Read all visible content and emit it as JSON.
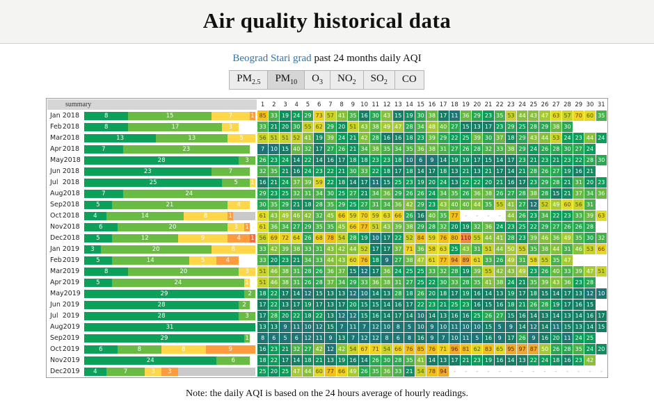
{
  "header": {
    "title": "Air quality historical data"
  },
  "subtitle": {
    "station_link": "Beograd Stari grad",
    "text": " past 24 months daily AQI"
  },
  "tabs": [
    {
      "id": "pm25",
      "base": "PM",
      "sub": "2.5",
      "active": false
    },
    {
      "id": "pm10",
      "base": "PM",
      "sub": "10",
      "active": true
    },
    {
      "id": "o3",
      "base": "O",
      "sub": "3",
      "active": false
    },
    {
      "id": "no2",
      "base": "NO",
      "sub": "2",
      "active": false
    },
    {
      "id": "so2",
      "base": "SO",
      "sub": "2",
      "active": false
    },
    {
      "id": "co",
      "base": "CO",
      "sub": "",
      "active": false
    }
  ],
  "note": "Note: the daily AQI is based on the 24 hours average of hourly readings.",
  "chart_data": {
    "type": "heatmap",
    "title": "Beograd Stari grad past 24 months daily AQI",
    "pollutant": "PM10",
    "summary_header": "summary",
    "day_headers": [
      1,
      2,
      3,
      4,
      5,
      6,
      7,
      8,
      9,
      10,
      11,
      12,
      13,
      14,
      15,
      16,
      17,
      18,
      19,
      20,
      21,
      22,
      23,
      24,
      25,
      26,
      27,
      28,
      29,
      30,
      31
    ],
    "legend": {
      "bands": [
        {
          "range": "0-25",
          "max": 25,
          "color": "#0ea05a"
        },
        {
          "range": "26-50",
          "max": 50,
          "color": "#69bb44"
        },
        {
          "range": "51-75",
          "max": 75,
          "color": "#fdd64b"
        },
        {
          "range": "76-100",
          "max": 100,
          "color": "#fc9c3e"
        },
        {
          "range": "101+",
          "max": 99999,
          "color": "#fa6a41"
        }
      ],
      "missing_color": "#c9c9c9"
    },
    "color_scale": [
      {
        "max": 12,
        "bg": "#1e7576",
        "fg": "#ffffff"
      },
      {
        "max": 17,
        "bg": "#147d64",
        "fg": "#ffffff"
      },
      {
        "max": 21,
        "bg": "#0f8e5e",
        "fg": "#ffffff"
      },
      {
        "max": 25,
        "bg": "#0c9d58",
        "fg": "#ffffff"
      },
      {
        "max": 30,
        "bg": "#28a850",
        "fg": "#ffffff"
      },
      {
        "max": 35,
        "bg": "#49b149",
        "fg": "#ffffff"
      },
      {
        "max": 40,
        "bg": "#68b942",
        "fg": "#ffffff"
      },
      {
        "max": 46,
        "bg": "#87c13b",
        "fg": "#ffffff"
      },
      {
        "max": 50,
        "bg": "#a5ca34",
        "fg": "#ffffff"
      },
      {
        "max": 57,
        "bg": "#c8d42b",
        "fg": "#595400"
      },
      {
        "max": 65,
        "bg": "#e1da26",
        "fg": "#594e00"
      },
      {
        "max": 75,
        "bg": "#eed321",
        "fg": "#594500"
      },
      {
        "max": 85,
        "bg": "#f1c01b",
        "fg": "#593800"
      },
      {
        "max": 100,
        "bg": "#efa82c",
        "fg": "#592800"
      },
      {
        "max": 9999,
        "bg": "#ee8a48",
        "fg": "#7c1100"
      }
    ],
    "rows": [
      {
        "month": "Jan",
        "year": "2018",
        "values": [
          85,
          33,
          19,
          24,
          29,
          73,
          57,
          41,
          35,
          16,
          30,
          43,
          15,
          19,
          30,
          38,
          17,
          11,
          36,
          29,
          23,
          35,
          53,
          44,
          43,
          47,
          63,
          57,
          70,
          60,
          35
        ]
      },
      {
        "month": "Feb",
        "year": "2018",
        "values": [
          33,
          21,
          20,
          30,
          55,
          62,
          29,
          20,
          51,
          43,
          38,
          49,
          47,
          28,
          34,
          48,
          40,
          27,
          15,
          13,
          17,
          23,
          29,
          25,
          28,
          29,
          38,
          30
        ]
      },
      {
        "month": "Mar",
        "year": "2018",
        "values": [
          56,
          51,
          51,
          52,
          41,
          19,
          39,
          24,
          21,
          42,
          28,
          16,
          16,
          18,
          23,
          39,
          29,
          22,
          25,
          39,
          30,
          37,
          18,
          29,
          43,
          44,
          53,
          24,
          23,
          44,
          24
        ]
      },
      {
        "month": "Apr",
        "year": "2018",
        "values": [
          7,
          10,
          15,
          40,
          32,
          17,
          27,
          26,
          21,
          34,
          38,
          35,
          34,
          35,
          36,
          38,
          31,
          27,
          26,
          28,
          32,
          33,
          38,
          29,
          24,
          26,
          28,
          30,
          27,
          24
        ]
      },
      {
        "month": "May",
        "year": "2018",
        "values": [
          26,
          23,
          24,
          14,
          22,
          14,
          16,
          17,
          18,
          18,
          23,
          23,
          18,
          10,
          6,
          9,
          14,
          19,
          19,
          17,
          15,
          14,
          17,
          23,
          21,
          23,
          21,
          23,
          22,
          28,
          30
        ]
      },
      {
        "month": "Jun",
        "year": "2018",
        "values": [
          32,
          35,
          21,
          16,
          24,
          23,
          22,
          21,
          30,
          33,
          22,
          18,
          17,
          18,
          14,
          17,
          18,
          13,
          21,
          13,
          21,
          17,
          14,
          21,
          28,
          26,
          27,
          19,
          16,
          21
        ]
      },
      {
        "month": "Jul",
        "year": "2018",
        "values": [
          16,
          21,
          24,
          37,
          39,
          59,
          22,
          18,
          14,
          17,
          11,
          15,
          25,
          23,
          19,
          20,
          24,
          13,
          22,
          22,
          20,
          21,
          16,
          17,
          23,
          29,
          28,
          21,
          31,
          20,
          23
        ]
      },
      {
        "month": "Aug",
        "year": "2018",
        "values": [
          29,
          23,
          25,
          32,
          31,
          34,
          30,
          25,
          27,
          21,
          34,
          36,
          29,
          26,
          26,
          24,
          34,
          35,
          26,
          36,
          38,
          26,
          27,
          28,
          38,
          28,
          15,
          21,
          37,
          34,
          36
        ]
      },
      {
        "month": "Sep",
        "year": "2018",
        "values": [
          30,
          35,
          29,
          21,
          18,
          28,
          35,
          29,
          25,
          27,
          31,
          34,
          36,
          42,
          29,
          23,
          43,
          40,
          40,
          44,
          35,
          55,
          41,
          27,
          12,
          52,
          49,
          60,
          56,
          31
        ]
      },
      {
        "month": "Oct",
        "year": "2018",
        "values": [
          61,
          43,
          49,
          46,
          42,
          32,
          45,
          66,
          59,
          70,
          59,
          63,
          66,
          26,
          16,
          40,
          35,
          77,
          null,
          null,
          null,
          null,
          44,
          26,
          23,
          34,
          22,
          23,
          33,
          39,
          63
        ]
      },
      {
        "month": "Nov",
        "year": "2018",
        "values": [
          61,
          36,
          34,
          27,
          29,
          35,
          35,
          45,
          66,
          77,
          51,
          43,
          39,
          38,
          29,
          28,
          32,
          20,
          19,
          32,
          36,
          24,
          23,
          25,
          22,
          29,
          27,
          26,
          26,
          28
        ]
      },
      {
        "month": "Dec",
        "year": "2018",
        "values": [
          56,
          69,
          72,
          64,
          26,
          68,
          78,
          54,
          28,
          19,
          10,
          17,
          22,
          52,
          84,
          59,
          76,
          80,
          110,
          55,
          44,
          41,
          28,
          23,
          39,
          46,
          36,
          49,
          35,
          30,
          32
        ]
      },
      {
        "month": "Jan",
        "year": "2019",
        "values": [
          33,
          42,
          39,
          38,
          33,
          31,
          43,
          42,
          44,
          52,
          17,
          17,
          37,
          71,
          36,
          58,
          63,
          25,
          43,
          31,
          51,
          44,
          50,
          55,
          35,
          38,
          44,
          31,
          46,
          53,
          66
        ]
      },
      {
        "month": "Feb",
        "year": "2019",
        "values": [
          33,
          20,
          23,
          21,
          34,
          33,
          44,
          43,
          60,
          76,
          18,
          9,
          27,
          38,
          47,
          61,
          77,
          94,
          89,
          61,
          33,
          26,
          49,
          31,
          58,
          55,
          35,
          47
        ]
      },
      {
        "month": "Mar",
        "year": "2019",
        "values": [
          51,
          46,
          38,
          31,
          28,
          26,
          36,
          37,
          15,
          12,
          17,
          36,
          24,
          25,
          25,
          33,
          32,
          28,
          19,
          39,
          55,
          42,
          43,
          49,
          23,
          26,
          40,
          33,
          39,
          47,
          51
        ]
      },
      {
        "month": "Apr",
        "year": "2019",
        "values": [
          51,
          46,
          38,
          31,
          26,
          28,
          37,
          34,
          29,
          33,
          36,
          38,
          31,
          27,
          25,
          22,
          30,
          33,
          28,
          35,
          41,
          38,
          24,
          21,
          35,
          39,
          43,
          36,
          23,
          28
        ]
      },
      {
        "month": "May",
        "year": "2019",
        "values": [
          18,
          22,
          17,
          14,
          12,
          15,
          13,
          13,
          12,
          10,
          14,
          13,
          28,
          18,
          26,
          20,
          18,
          17,
          19,
          16,
          14,
          13,
          19,
          17,
          18,
          15,
          14,
          17,
          13,
          12,
          10
        ]
      },
      {
        "month": "Jun",
        "year": "2019",
        "values": [
          17,
          22,
          13,
          17,
          19,
          17,
          13,
          17,
          20,
          15,
          15,
          14,
          16,
          17,
          22,
          23,
          21,
          25,
          23,
          16,
          15,
          16,
          18,
          21,
          26,
          28,
          19,
          17,
          16,
          15
        ]
      },
      {
        "month": "Jul",
        "year": "2019",
        "values": [
          17,
          28,
          20,
          22,
          18,
          22,
          13,
          12,
          12,
          15,
          16,
          14,
          17,
          14,
          10,
          14,
          13,
          16,
          16,
          25,
          26,
          27,
          15,
          16,
          14,
          13,
          14,
          13,
          14,
          16,
          17
        ]
      },
      {
        "month": "Aug",
        "year": "2019",
        "values": [
          13,
          13,
          9,
          11,
          10,
          12,
          15,
          7,
          11,
          7,
          12,
          10,
          8,
          5,
          10,
          9,
          10,
          11,
          10,
          10,
          15,
          5,
          9,
          14,
          12,
          14,
          11,
          15,
          13,
          14,
          15
        ]
      },
      {
        "month": "Sep",
        "year": "2019",
        "values": [
          8,
          6,
          5,
          6,
          12,
          11,
          9,
          13,
          7,
          12,
          12,
          8,
          6,
          8,
          16,
          9,
          7,
          10,
          11,
          5,
          16,
          9,
          17,
          26,
          9,
          16,
          20,
          11,
          24,
          25
        ]
      },
      {
        "month": "Oct",
        "year": "2019",
        "values": [
          16,
          23,
          21,
          32,
          27,
          42,
          12,
          42,
          54,
          67,
          71,
          54,
          66,
          76,
          85,
          76,
          71,
          96,
          81,
          62,
          83,
          65,
          95,
          97,
          87,
          50,
          26,
          28,
          35,
          24,
          20
        ]
      },
      {
        "month": "Nov",
        "year": "2019",
        "values": [
          18,
          22,
          17,
          14,
          18,
          21,
          13,
          19,
          16,
          14,
          26,
          30,
          28,
          35,
          41,
          14,
          13,
          17,
          21,
          23,
          19,
          16,
          14,
          13,
          22,
          24,
          18,
          16,
          23,
          42
        ]
      },
      {
        "month": "Dec",
        "year": "2019",
        "values": [
          25,
          20,
          25,
          47,
          44,
          60,
          77,
          66,
          49,
          26,
          35,
          36,
          33,
          21,
          54,
          78,
          94,
          null,
          null,
          null,
          null,
          null,
          null,
          null,
          null,
          null,
          null,
          null,
          null,
          null,
          null
        ]
      }
    ]
  }
}
